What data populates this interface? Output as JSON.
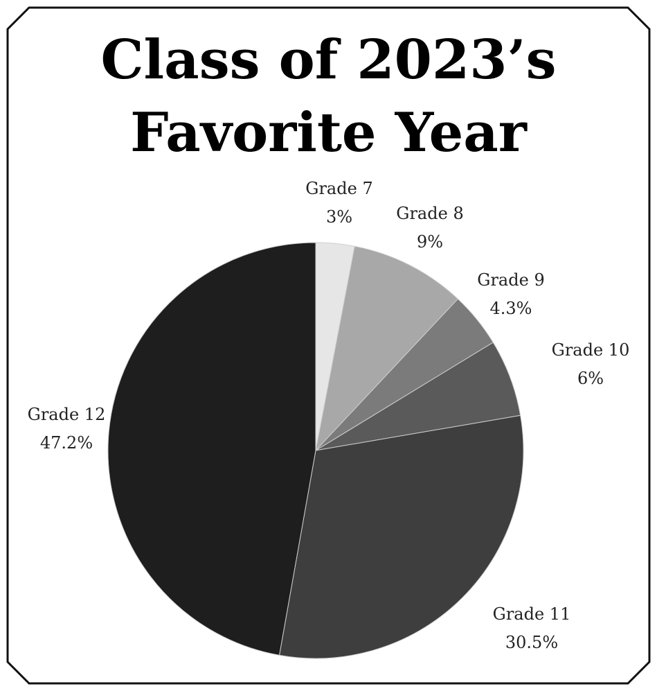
{
  "chart_data": {
    "type": "pie",
    "title_lines": [
      "Class of 2023’s",
      "Favorite Year"
    ],
    "slices": [
      {
        "label": "Grade 7",
        "percent_label": "3%",
        "value": 3.0,
        "color": "#e6e6e6"
      },
      {
        "label": "Grade 8",
        "percent_label": "9%",
        "value": 9.0,
        "color": "#a8a8a8"
      },
      {
        "label": "Grade 9",
        "percent_label": "4.3%",
        "value": 4.3,
        "color": "#7b7b7b"
      },
      {
        "label": "Grade 10",
        "percent_label": "6%",
        "value": 6.0,
        "color": "#5a5a5a"
      },
      {
        "label": "Grade 11",
        "percent_label": "30.5%",
        "value": 30.5,
        "color": "#3e3e3e"
      },
      {
        "label": "Grade 12",
        "percent_label": "47.2%",
        "value": 47.2,
        "color": "#1e1e1e"
      }
    ],
    "start_angle": "12 o'clock",
    "direction": "clockwise",
    "legend": "none"
  }
}
